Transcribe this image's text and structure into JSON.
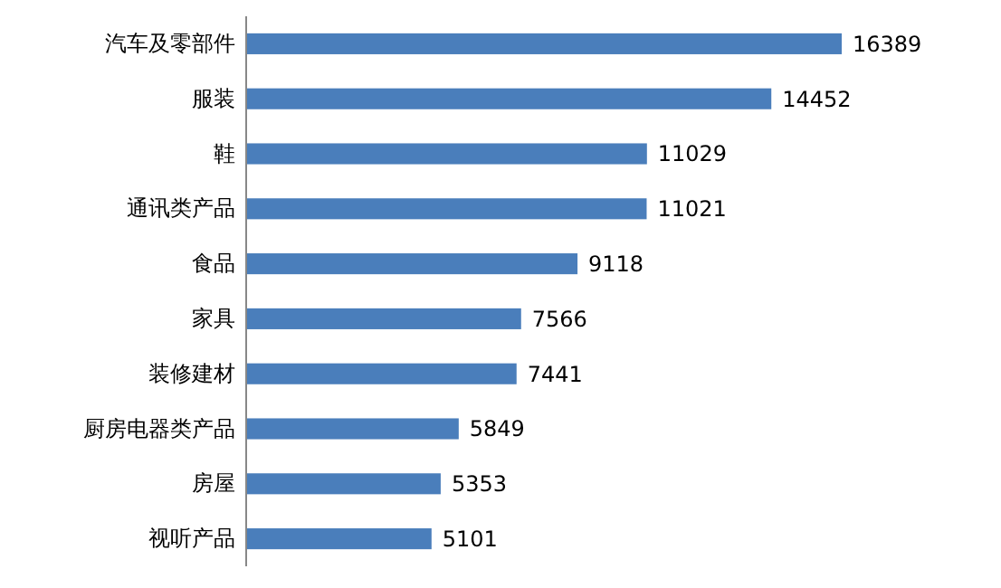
{
  "chart_data": {
    "type": "bar",
    "orientation": "horizontal",
    "data_labels": true,
    "color": "#4a7ebb",
    "categories": [
      "汽车及零部件",
      "服装",
      "鞋",
      "通讯类产品",
      "食品",
      "家具",
      "装修建材",
      "厨房电器类产品",
      "房屋",
      "视听产品"
    ],
    "values": [
      16389,
      14452,
      11029,
      11021,
      9118,
      7566,
      7441,
      5849,
      5353,
      5101
    ]
  }
}
